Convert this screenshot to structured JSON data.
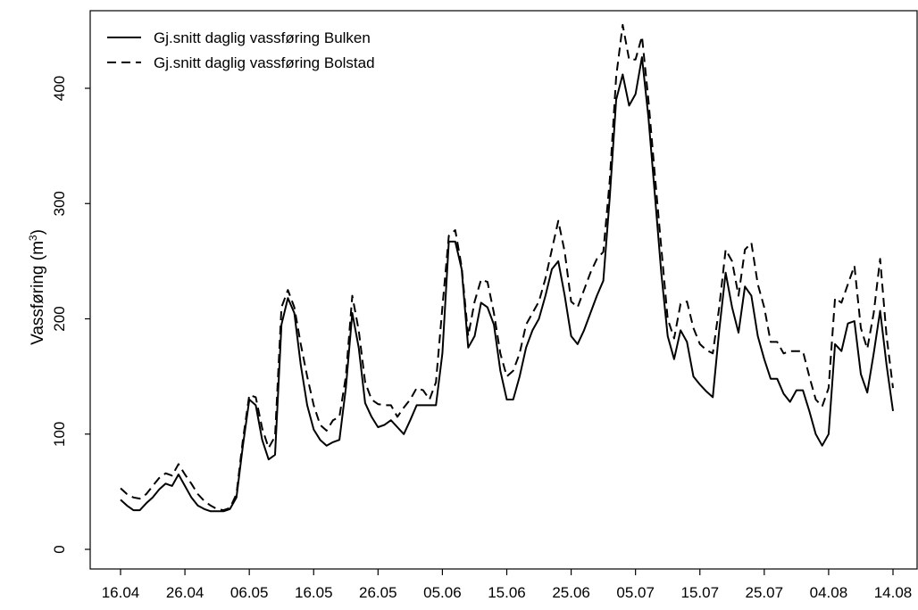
{
  "chart_data": {
    "type": "line",
    "title": "",
    "xlabel": "",
    "ylabel": "Vassføring (m",
    "ylabel_sup": "3",
    "ylabel_close": ")",
    "ylim": [
      0,
      450
    ],
    "xlim": [
      0,
      120
    ],
    "yticks": [
      0,
      100,
      200,
      300,
      400
    ],
    "xticks": [
      {
        "label": "16.04",
        "day": 0
      },
      {
        "label": "26.04",
        "day": 10
      },
      {
        "label": "06.05",
        "day": 20
      },
      {
        "label": "16.05",
        "day": 30
      },
      {
        "label": "26.05",
        "day": 40
      },
      {
        "label": "05.06",
        "day": 50
      },
      {
        "label": "15.06",
        "day": 60
      },
      {
        "label": "25.06",
        "day": 70
      },
      {
        "label": "05.07",
        "day": 80
      },
      {
        "label": "15.07",
        "day": 90
      },
      {
        "label": "25.07",
        "day": 100
      },
      {
        "label": "04.08",
        "day": 110
      },
      {
        "label": "14.08",
        "day": 120
      }
    ],
    "legend_position": "top-left",
    "grid": false,
    "series": [
      {
        "name": "Gj.snitt daglig vassføring Bulken",
        "style": "solid",
        "color": "#000000",
        "x": [
          0,
          1,
          2,
          3,
          4,
          5,
          6,
          7,
          8,
          9,
          10,
          11,
          12,
          13,
          14,
          15,
          16,
          17,
          18,
          19,
          20,
          21,
          22,
          23,
          24,
          25,
          26,
          27,
          28,
          29,
          30,
          31,
          32,
          33,
          34,
          35,
          36,
          37,
          38,
          39,
          40,
          41,
          42,
          43,
          44,
          45,
          46,
          47,
          48,
          49,
          50,
          51,
          52,
          53,
          54,
          55,
          56,
          57,
          58,
          59,
          60,
          61,
          62,
          63,
          64,
          65,
          66,
          67,
          68,
          69,
          70,
          71,
          72,
          73,
          74,
          75,
          76,
          77,
          78,
          79,
          80,
          81,
          82,
          83,
          84,
          85,
          86,
          87,
          88,
          89,
          90,
          91,
          92,
          93,
          94,
          95,
          96,
          97,
          98,
          99,
          100,
          101,
          102,
          103,
          104,
          105,
          106,
          107,
          108,
          109,
          110,
          111,
          112,
          113,
          114,
          115,
          116,
          117,
          118,
          119,
          120
        ],
        "y": [
          43,
          38,
          34,
          34,
          40,
          45,
          52,
          57,
          55,
          65,
          55,
          45,
          38,
          35,
          33,
          33,
          33,
          35,
          45,
          90,
          130,
          125,
          95,
          78,
          82,
          195,
          218,
          205,
          160,
          125,
          104,
          95,
          90,
          93,
          95,
          140,
          205,
          175,
          127,
          115,
          106,
          108,
          112,
          106,
          100,
          112,
          125,
          125,
          125,
          125,
          170,
          267,
          267,
          243,
          175,
          185,
          214,
          210,
          195,
          155,
          130,
          130,
          150,
          175,
          190,
          200,
          220,
          243,
          250,
          220,
          185,
          178,
          190,
          205,
          220,
          233,
          305,
          390,
          412,
          385,
          395,
          427,
          375,
          308,
          240,
          185,
          165,
          190,
          180,
          150,
          143,
          137,
          132,
          190,
          240,
          210,
          188,
          228,
          220,
          185,
          165,
          148,
          148,
          135,
          128,
          138,
          138,
          120,
          100,
          90,
          100,
          178,
          172,
          196,
          198,
          152,
          136,
          170,
          207,
          160,
          120
        ]
      },
      {
        "name": "Gj.snitt daglig vassføring Bolstad",
        "style": "dashed",
        "color": "#000000",
        "x": [
          0,
          1,
          2,
          3,
          4,
          5,
          6,
          7,
          8,
          9,
          10,
          11,
          12,
          13,
          14,
          15,
          16,
          17,
          18,
          19,
          20,
          21,
          22,
          23,
          24,
          25,
          26,
          27,
          28,
          29,
          30,
          31,
          32,
          33,
          34,
          35,
          36,
          37,
          38,
          39,
          40,
          41,
          42,
          43,
          44,
          45,
          46,
          47,
          48,
          49,
          50,
          51,
          52,
          53,
          54,
          55,
          56,
          57,
          58,
          59,
          60,
          61,
          62,
          63,
          64,
          65,
          66,
          67,
          68,
          69,
          70,
          71,
          72,
          73,
          74,
          75,
          76,
          77,
          78,
          79,
          80,
          81,
          82,
          83,
          84,
          85,
          86,
          87,
          88,
          89,
          90,
          91,
          92,
          93,
          94,
          95,
          96,
          97,
          98,
          99,
          100,
          101,
          102,
          103,
          104,
          105,
          106,
          107,
          108,
          109,
          110,
          111,
          112,
          113,
          114,
          115,
          116,
          117,
          118,
          119,
          120
        ],
        "y": [
          53,
          48,
          45,
          44,
          48,
          55,
          62,
          66,
          64,
          74,
          65,
          57,
          48,
          42,
          38,
          35,
          34,
          36,
          48,
          95,
          134,
          132,
          105,
          88,
          98,
          210,
          225,
          210,
          178,
          150,
          125,
          108,
          103,
          112,
          115,
          150,
          220,
          190,
          145,
          130,
          126,
          125,
          125,
          115,
          123,
          130,
          140,
          138,
          130,
          145,
          210,
          272,
          277,
          245,
          185,
          215,
          234,
          232,
          205,
          170,
          150,
          155,
          170,
          195,
          205,
          215,
          235,
          260,
          285,
          258,
          215,
          210,
          225,
          240,
          252,
          258,
          320,
          410,
          455,
          425,
          425,
          445,
          390,
          325,
          262,
          200,
          183,
          213,
          215,
          192,
          178,
          173,
          170,
          210,
          260,
          250,
          220,
          260,
          266,
          230,
          210,
          180,
          180,
          170,
          172,
          172,
          172,
          150,
          130,
          124,
          140,
          218,
          214,
          230,
          246,
          192,
          174,
          205,
          252,
          185,
          140
        ]
      }
    ]
  }
}
